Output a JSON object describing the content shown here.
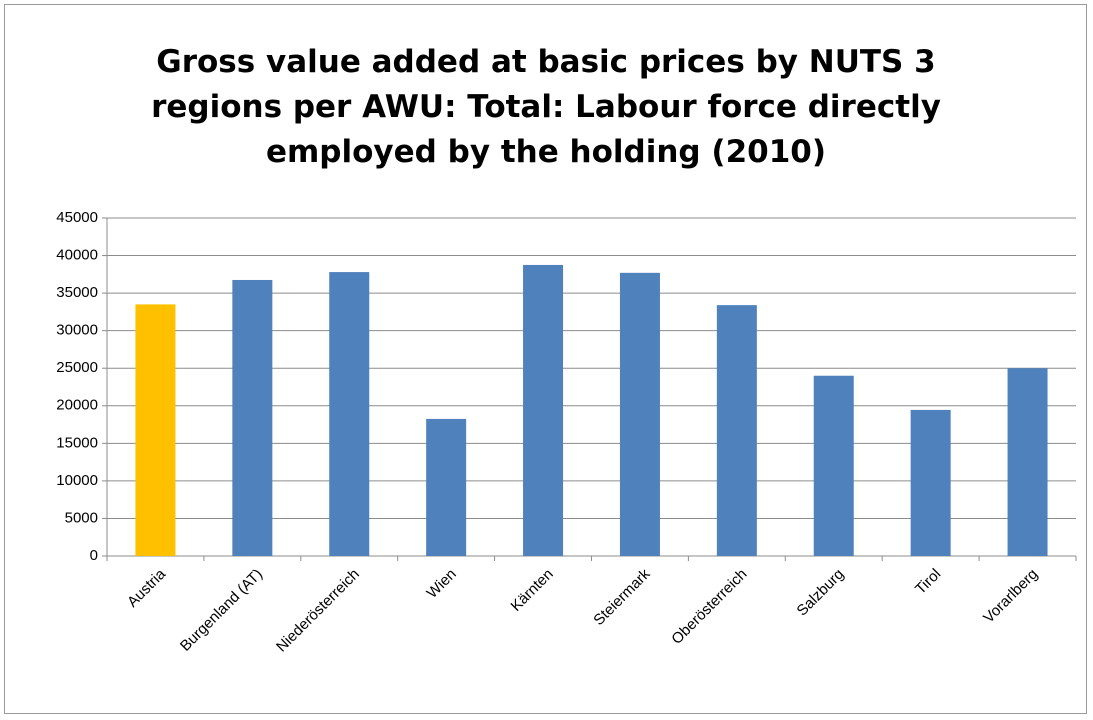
{
  "chart_data": {
    "type": "bar",
    "title": "Gross value added at basic prices by NUTS 3 regions per AWU: Total: Labour force directly employed by the holding (2010)",
    "categories": [
      "Austria",
      "Burgenland (AT)",
      "Niederösterreich",
      "Wien",
      "Kärnten",
      "Steiermark",
      "Oberösterreich",
      "Salzburg",
      "Tirol",
      "Vorarlberg"
    ],
    "values": [
      33500,
      36750,
      37800,
      18250,
      38750,
      37700,
      33400,
      24000,
      19450,
      25000
    ],
    "colors": [
      "#ffc000",
      "#4f81bd",
      "#4f81bd",
      "#4f81bd",
      "#4f81bd",
      "#4f81bd",
      "#4f81bd",
      "#4f81bd",
      "#4f81bd",
      "#4f81bd"
    ],
    "ylim": [
      0,
      45000
    ],
    "yticks": [
      0,
      5000,
      10000,
      15000,
      20000,
      25000,
      30000,
      35000,
      40000,
      45000
    ],
    "grid": true
  }
}
